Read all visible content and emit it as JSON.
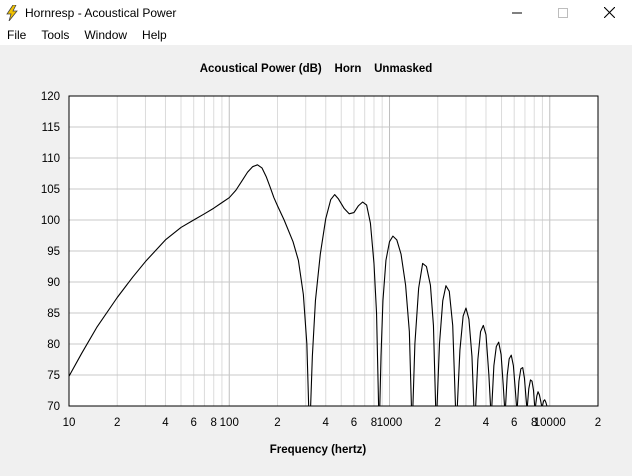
{
  "window": {
    "title": "Hornresp - Acoustical Power",
    "app_icon": "lightning-icon"
  },
  "menu": {
    "items": [
      "File",
      "Tools",
      "Window",
      "Help"
    ]
  },
  "chart_data": {
    "type": "line",
    "title": "Acoustical Power (dB)    Horn    Unmasked",
    "xlabel": "Frequency (hertz)",
    "ylabel": "",
    "x_scale": "log",
    "xlim": [
      10,
      20000
    ],
    "ylim": [
      70,
      120
    ],
    "y_ticks": [
      120,
      115,
      110,
      105,
      100,
      95,
      90,
      85,
      80,
      75,
      70
    ],
    "x_ticks": [
      {
        "value": 10,
        "label": "10"
      },
      {
        "value": 20,
        "label": "2"
      },
      {
        "value": 40,
        "label": "4"
      },
      {
        "value": 60,
        "label": "6"
      },
      {
        "value": 80,
        "label": "8"
      },
      {
        "value": 100,
        "label": "100"
      },
      {
        "value": 200,
        "label": "2"
      },
      {
        "value": 400,
        "label": "4"
      },
      {
        "value": 600,
        "label": "6"
      },
      {
        "value": 800,
        "label": "8"
      },
      {
        "value": 1000,
        "label": "1000"
      },
      {
        "value": 2000,
        "label": "2"
      },
      {
        "value": 4000,
        "label": "4"
      },
      {
        "value": 6000,
        "label": "6"
      },
      {
        "value": 8000,
        "label": "8"
      },
      {
        "value": 10000,
        "label": "10000"
      },
      {
        "value": 20000,
        "label": "2"
      }
    ],
    "grid": true,
    "line_color": "#000000",
    "series": [
      {
        "points": [
          [
            10,
            74.8
          ],
          [
            12,
            78.5
          ],
          [
            15,
            82.8
          ],
          [
            20,
            87.5
          ],
          [
            25,
            90.8
          ],
          [
            30,
            93.3
          ],
          [
            40,
            96.8
          ],
          [
            50,
            98.8
          ],
          [
            60,
            100.0
          ],
          [
            70,
            101.0
          ],
          [
            80,
            101.9
          ],
          [
            90,
            102.8
          ],
          [
            100,
            103.6
          ],
          [
            110,
            104.8
          ],
          [
            120,
            106.3
          ],
          [
            130,
            107.7
          ],
          [
            140,
            108.6
          ],
          [
            150,
            108.9
          ],
          [
            160,
            108.4
          ],
          [
            170,
            107.0
          ],
          [
            180,
            105.3
          ],
          [
            190,
            103.6
          ],
          [
            200,
            102.3
          ],
          [
            220,
            100.0
          ],
          [
            250,
            96.5
          ],
          [
            270,
            93.5
          ],
          [
            290,
            88.0
          ],
          [
            305,
            80.0
          ],
          [
            313,
            70.0
          ]
        ]
      },
      {
        "points": [
          [
            322,
            70.0
          ],
          [
            330,
            78.0
          ],
          [
            345,
            87.0
          ],
          [
            370,
            94.5
          ],
          [
            400,
            100.2
          ],
          [
            430,
            103.3
          ],
          [
            455,
            104.1
          ],
          [
            480,
            103.4
          ],
          [
            520,
            101.9
          ],
          [
            560,
            101.0
          ],
          [
            600,
            101.2
          ],
          [
            640,
            102.3
          ],
          [
            680,
            102.9
          ],
          [
            720,
            102.4
          ],
          [
            760,
            99.5
          ],
          [
            800,
            93.0
          ],
          [
            830,
            85.0
          ],
          [
            855,
            70.0
          ]
        ]
      },
      {
        "points": [
          [
            870,
            70.0
          ],
          [
            885,
            78.0
          ],
          [
            910,
            87.0
          ],
          [
            950,
            93.5
          ],
          [
            1000,
            96.5
          ],
          [
            1050,
            97.4
          ],
          [
            1110,
            96.8
          ],
          [
            1180,
            94.5
          ],
          [
            1260,
            89.5
          ],
          [
            1330,
            82.0
          ],
          [
            1370,
            70.0
          ]
        ]
      },
      {
        "points": [
          [
            1400,
            70.0
          ],
          [
            1440,
            80.0
          ],
          [
            1520,
            89.0
          ],
          [
            1610,
            93.0
          ],
          [
            1700,
            92.5
          ],
          [
            1800,
            89.5
          ],
          [
            1880,
            83.0
          ],
          [
            1940,
            70.0
          ]
        ]
      },
      {
        "points": [
          [
            1980,
            70.0
          ],
          [
            2050,
            80.0
          ],
          [
            2150,
            87.0
          ],
          [
            2250,
            89.4
          ],
          [
            2360,
            88.5
          ],
          [
            2480,
            83.0
          ],
          [
            2580,
            70.0
          ]
        ]
      },
      {
        "points": [
          [
            2650,
            70.0
          ],
          [
            2750,
            79.0
          ],
          [
            2880,
            84.5
          ],
          [
            3000,
            85.8
          ],
          [
            3130,
            84.0
          ],
          [
            3270,
            78.0
          ],
          [
            3360,
            70.0
          ]
        ]
      },
      {
        "points": [
          [
            3450,
            70.0
          ],
          [
            3560,
            77.5
          ],
          [
            3700,
            82.0
          ],
          [
            3850,
            83.0
          ],
          [
            4000,
            81.5
          ],
          [
            4170,
            75.0
          ],
          [
            4270,
            70.0
          ]
        ]
      },
      {
        "points": [
          [
            4350,
            70.0
          ],
          [
            4480,
            76.5
          ],
          [
            4640,
            79.6
          ],
          [
            4800,
            80.3
          ],
          [
            4970,
            78.3
          ],
          [
            5120,
            73.5
          ],
          [
            5220,
            70.0
          ]
        ]
      },
      {
        "points": [
          [
            5300,
            70.0
          ],
          [
            5430,
            75.0
          ],
          [
            5580,
            77.6
          ],
          [
            5750,
            78.2
          ],
          [
            5930,
            76.5
          ],
          [
            6100,
            72.5
          ],
          [
            6200,
            70.0
          ]
        ]
      },
      {
        "points": [
          [
            6280,
            70.0
          ],
          [
            6420,
            74.0
          ],
          [
            6600,
            76.0
          ],
          [
            6780,
            76.2
          ],
          [
            6950,
            74.5
          ],
          [
            7100,
            71.5
          ],
          [
            7180,
            70.0
          ]
        ]
      },
      {
        "points": [
          [
            7250,
            70.0
          ],
          [
            7400,
            72.8
          ],
          [
            7580,
            74.2
          ],
          [
            7750,
            74.0
          ],
          [
            7920,
            72.5
          ],
          [
            8050,
            70.0
          ]
        ]
      },
      {
        "points": [
          [
            8150,
            70.0
          ],
          [
            8300,
            71.6
          ],
          [
            8450,
            72.3
          ],
          [
            8620,
            71.8
          ],
          [
            8780,
            70.8
          ],
          [
            8900,
            70.0
          ]
        ]
      },
      {
        "points": [
          [
            9000,
            70.0
          ],
          [
            9150,
            70.8
          ],
          [
            9300,
            71.0
          ],
          [
            9450,
            70.6
          ],
          [
            9600,
            70.0
          ]
        ]
      }
    ]
  }
}
